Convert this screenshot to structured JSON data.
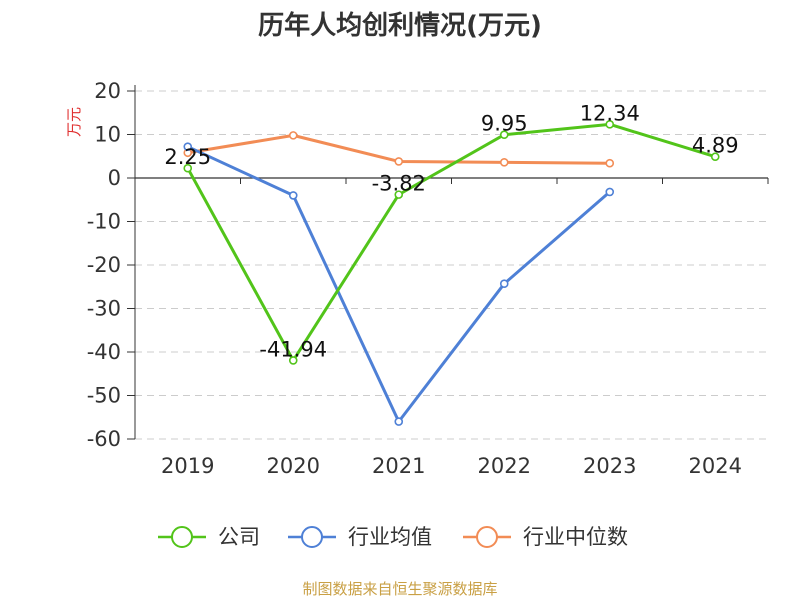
{
  "chart_data": {
    "type": "line",
    "title": "历年人均创利情况(万元)",
    "ylabel": "万元",
    "xlabel": "",
    "categories": [
      "2019",
      "2020",
      "2021",
      "2022",
      "2023",
      "2024"
    ],
    "ylim": [
      -60,
      20
    ],
    "yticks": [
      20,
      10,
      0,
      -10,
      -20,
      -30,
      -40,
      -50,
      -60
    ],
    "grid": true,
    "legend_position": "bottom",
    "series": [
      {
        "name": "公司",
        "color": "#52c41a",
        "values": [
          2.25,
          -41.94,
          -3.82,
          9.95,
          12.34,
          4.89
        ],
        "labels": [
          "2.25",
          "-41.94",
          "-3.82",
          "9.95",
          "12.34",
          "4.89"
        ]
      },
      {
        "name": "行业均值",
        "color": "#4e80d6",
        "values": [
          7.2,
          -4.0,
          -56.0,
          -24.3,
          -3.2,
          null
        ]
      },
      {
        "name": "行业中位数",
        "color": "#f28c55",
        "values": [
          5.8,
          9.8,
          3.8,
          3.6,
          3.4,
          null
        ]
      }
    ]
  },
  "footer": {
    "source": "制图数据来自恒生聚源数据库"
  }
}
